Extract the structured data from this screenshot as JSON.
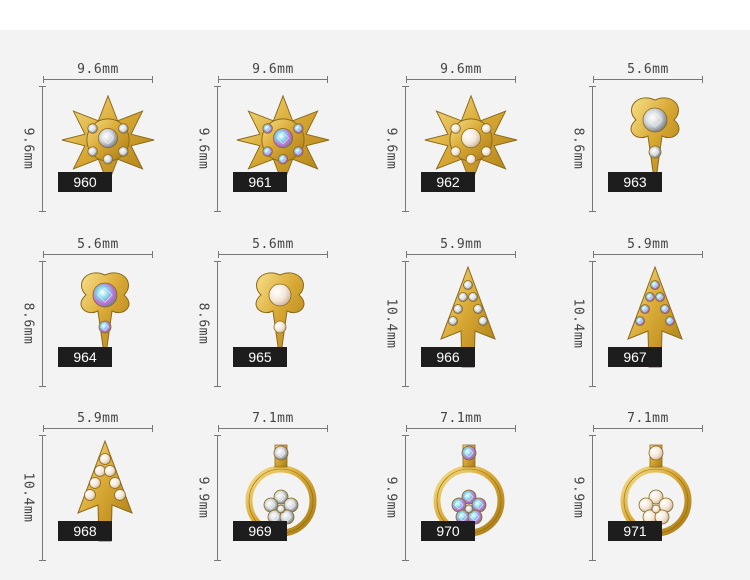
{
  "items": [
    {
      "code": "960",
      "width": "9.6mm",
      "height": "9.6mm",
      "shape": "star-flower"
    },
    {
      "code": "961",
      "width": "9.6mm",
      "height": "9.6mm",
      "shape": "star-flower-ab"
    },
    {
      "code": "962",
      "width": "9.6mm",
      "height": "9.6mm",
      "shape": "star-flower-pearl"
    },
    {
      "code": "963",
      "width": "5.6mm",
      "height": "8.6mm",
      "shape": "clover-drop"
    },
    {
      "code": "964",
      "width": "5.6mm",
      "height": "8.6mm",
      "shape": "clover-drop-ab"
    },
    {
      "code": "965",
      "width": "5.6mm",
      "height": "8.6mm",
      "shape": "clover-drop-pearl"
    },
    {
      "code": "966",
      "width": "5.9mm",
      "height": "10.4mm",
      "shape": "arrow"
    },
    {
      "code": "967",
      "width": "5.9mm",
      "height": "10.4mm",
      "shape": "arrow-ab"
    },
    {
      "code": "968",
      "width": "5.9mm",
      "height": "10.4mm",
      "shape": "arrow-pearl"
    },
    {
      "code": "969",
      "width": "7.1mm",
      "height": "9.9mm",
      "shape": "ring-flower"
    },
    {
      "code": "970",
      "width": "7.1mm",
      "height": "9.9mm",
      "shape": "ring-flower-ab"
    },
    {
      "code": "971",
      "width": "7.1mm",
      "height": "9.9mm",
      "shape": "ring-flower-pearl"
    }
  ],
  "colors": {
    "gold": "#d9a935",
    "gold_light": "#f4d77a",
    "gold_dark": "#a87a14",
    "badge": "#1d1d1d",
    "background": "#f3f3f3"
  }
}
